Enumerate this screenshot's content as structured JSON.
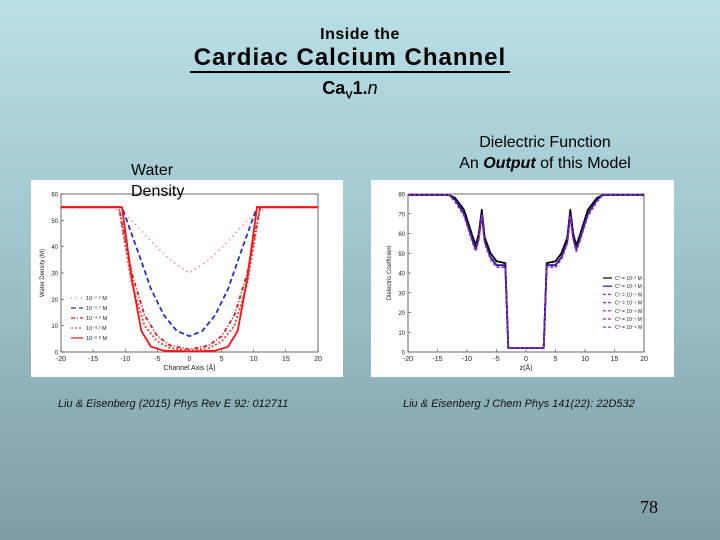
{
  "slide": {
    "title_line1": "Inside the",
    "title_line2": "Cardiac Calcium Channel",
    "subtitle_main": "Ca",
    "subtitle_sub": "V",
    "subtitle_num": "1.",
    "subtitle_var": "n",
    "page_number": "78"
  },
  "left_panel": {
    "label_line1": "Water",
    "label_line2": "Density",
    "reference": "Liu & Eisenberg (2015) Phys Rev E 92: 012711"
  },
  "right_panel": {
    "label_line1": "Dielectric Function",
    "label_pre": "An ",
    "label_emph": "Output",
    "label_post": " of this Model",
    "reference": "Liu & Eisenberg J Chem Phys 141(22): 22D532"
  },
  "chart_data": [
    {
      "type": "line",
      "xlabel": "Channel Axis (Å)",
      "ylabel": "Water Density (M)",
      "xlim": [
        -20,
        20
      ],
      "ylim": [
        0,
        60
      ],
      "x_ticks": [
        "-20",
        "-15",
        "-10",
        "-5",
        "0",
        "5",
        "10",
        "15",
        "20"
      ],
      "y_ticks": [
        "0",
        "10",
        "20",
        "30",
        "40",
        "50",
        "60"
      ],
      "legend": [
        "10⁻⁷·² M",
        "10⁻⁶·⁷ M",
        "10⁻⁴·² M",
        "10⁻³·² M",
        "10⁻²·⁸ M"
      ],
      "legend_position": "left-middle",
      "series": [
        {
          "color": "#ff6a6a",
          "dash": "1,4",
          "x": [
            -20,
            -12,
            -9,
            -6,
            -3,
            0,
            3,
            6,
            9,
            12,
            20
          ],
          "y": [
            55,
            55,
            50,
            42,
            35,
            30,
            35,
            42,
            50,
            55,
            55
          ]
        },
        {
          "color": "#2030d0",
          "dash": "5,3",
          "x": [
            -20,
            -10.5,
            -8,
            -6,
            -4,
            -2,
            0,
            2,
            4,
            6,
            8,
            10.5,
            20
          ],
          "y": [
            55,
            55,
            38,
            24,
            14,
            8,
            6,
            8,
            14,
            24,
            38,
            55,
            55
          ]
        },
        {
          "color": "#d02020",
          "dash": "4,2,1,2",
          "x": [
            -20,
            -11,
            -9,
            -7,
            -5,
            -3,
            0,
            3,
            5,
            7,
            9,
            11,
            20
          ],
          "y": [
            55,
            55,
            30,
            14,
            6,
            2.5,
            1,
            2.5,
            6,
            14,
            30,
            55,
            55
          ]
        },
        {
          "color": "#e04040",
          "dash": "2,2",
          "x": [
            -20,
            -11,
            -9,
            -7,
            -5,
            -3,
            0,
            3,
            5,
            7,
            9,
            11,
            20
          ],
          "y": [
            55,
            55,
            26,
            10,
            4,
            1.5,
            0.5,
            1.5,
            4,
            10,
            26,
            55,
            55
          ]
        },
        {
          "color": "#ff1010",
          "dash": "",
          "x": [
            -20,
            -10.5,
            -9,
            -7.5,
            -6,
            -4,
            0,
            4,
            6,
            7.5,
            9,
            10.5,
            20
          ],
          "y": [
            55,
            55,
            28,
            8,
            2,
            0.5,
            0.2,
            0.5,
            2,
            8,
            28,
            55,
            55
          ]
        }
      ]
    },
    {
      "type": "line",
      "xlabel": "z(Å)",
      "ylabel": "Dielectric Coefficient",
      "xlim": [
        -20,
        20
      ],
      "ylim": [
        0,
        80
      ],
      "x_ticks": [
        "-20",
        "-15",
        "-10",
        "-5",
        "0",
        "5",
        "10",
        "15",
        "20"
      ],
      "y_ticks": [
        "0",
        "10",
        "20",
        "30",
        "40",
        "50",
        "60",
        "70",
        "80"
      ],
      "legend": [
        "C⁰ = 10⁻² M",
        "C⁰ = 10⁻³ M",
        "C⁰ = 10⁻⁴ M",
        "C⁰ = 10⁻⁵ M",
        "C⁰ = 10⁻⁶ M",
        "C⁰ = 10⁻⁷ M",
        "C⁰ = 10⁻⁸ M"
      ],
      "legend_position": "right",
      "series": [
        {
          "color": "#000000",
          "dash": "",
          "x": [
            -20,
            -13,
            -12,
            -10.5,
            -9,
            -8.5,
            -8,
            -7.5,
            -7,
            -6,
            -5,
            -3.5,
            -3,
            -2,
            -1.5,
            -1,
            0,
            1,
            1.5,
            2,
            3,
            3.5,
            5,
            6,
            7,
            7.5,
            8,
            8.5,
            9,
            10.5,
            12,
            13,
            20
          ],
          "y": [
            79.5,
            79.5,
            78,
            72,
            58,
            54,
            60,
            72,
            58,
            50,
            46,
            45,
            2,
            2,
            2,
            2,
            2,
            2,
            2,
            2,
            2,
            45,
            46,
            50,
            58,
            72,
            60,
            54,
            58,
            72,
            78,
            79.5,
            79.5
          ]
        },
        {
          "color": "#1a1aa0",
          "dash": "",
          "x": [
            -20,
            -13,
            -12,
            -10.5,
            -9,
            -8.5,
            -8,
            -7.5,
            -7,
            -6,
            -5,
            -3.5,
            -3,
            -2,
            -1.5,
            -1,
            0,
            1,
            1.5,
            2,
            3,
            3.5,
            5,
            6,
            7,
            7.5,
            8,
            8.5,
            9,
            10.5,
            12,
            13,
            20
          ],
          "y": [
            79.5,
            79.5,
            77,
            70,
            56,
            52,
            58,
            70,
            56,
            48,
            44,
            44,
            2,
            2,
            2,
            2,
            2,
            2,
            2,
            2,
            2,
            44,
            44,
            48,
            56,
            70,
            58,
            52,
            56,
            70,
            77,
            79.5,
            79.5
          ]
        },
        {
          "color": "#9a2aa0",
          "dash": "3,2",
          "x": [
            -20,
            -13,
            -12,
            -10.5,
            -9,
            -8.5,
            -8,
            -7.5,
            -7,
            -6,
            -5,
            -3.5,
            -3,
            -2,
            -1.5,
            -1,
            0,
            1,
            1.5,
            2,
            3,
            3.5,
            5,
            6,
            7,
            7.5,
            8,
            8.5,
            9,
            10.5,
            12,
            13,
            20
          ],
          "y": [
            79.5,
            79.5,
            76,
            69,
            55,
            51,
            57,
            69,
            55,
            47,
            43,
            43,
            2,
            2,
            2,
            2,
            2,
            2,
            2,
            2,
            2,
            43,
            43,
            47,
            55,
            69,
            57,
            51,
            55,
            69,
            76,
            79.5,
            79.5
          ]
        }
      ]
    }
  ]
}
